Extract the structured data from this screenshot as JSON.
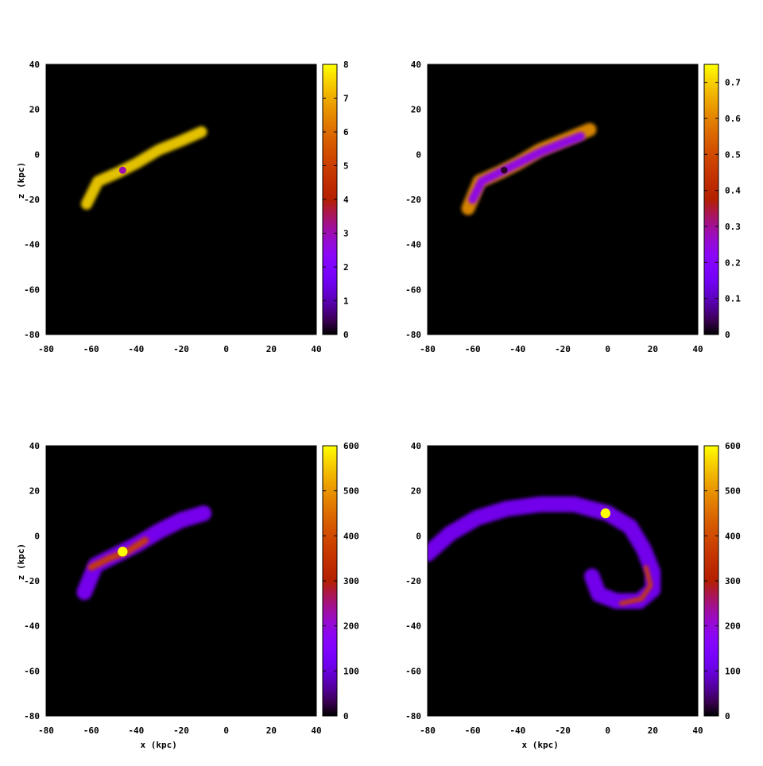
{
  "chart_data": [
    {
      "type": "heatmap",
      "panel": "top-left",
      "xlabel": "",
      "ylabel": "z (kpc)",
      "xlim": [
        -80,
        40
      ],
      "ylim": [
        -80,
        40
      ],
      "x_ticks": [
        "-80",
        "-60",
        "-40",
        "-20",
        "0",
        "20",
        "40"
      ],
      "y_ticks": [
        "-80",
        "-60",
        "-40",
        "-20",
        "0",
        "20",
        "40"
      ],
      "colorbar": {
        "range": [
          0,
          8
        ],
        "ticks": [
          "0",
          "1",
          "2",
          "3",
          "4",
          "5",
          "6",
          "7",
          "8"
        ]
      },
      "features": [
        {
          "kind": "stream",
          "path": [
            [
              -62,
              -22
            ],
            [
              -57,
              -12
            ],
            [
              -48,
              -8
            ],
            [
              -40,
              -4
            ],
            [
              -30,
              2
            ],
            [
              -20,
              6
            ],
            [
              -11,
              10
            ]
          ],
          "width_kpc": 5,
          "level": 7.5
        },
        {
          "kind": "blob",
          "x": -46,
          "z": -7,
          "r_kpc": 1.6,
          "level": 3
        }
      ]
    },
    {
      "type": "heatmap",
      "panel": "top-right",
      "xlabel": "",
      "ylabel": "",
      "xlim": [
        -80,
        40
      ],
      "ylim": [
        -80,
        40
      ],
      "x_ticks": [
        "-80",
        "-60",
        "-40",
        "-20",
        "0",
        "20",
        "40"
      ],
      "y_ticks": [
        "-80",
        "-60",
        "-40",
        "-20",
        "0",
        "20",
        "40"
      ],
      "colorbar": {
        "range": [
          0,
          0.75
        ],
        "ticks": [
          "0",
          "0.1",
          "0.2",
          "0.3",
          "0.4",
          "0.5",
          "0.6",
          "0.7"
        ]
      },
      "features": [
        {
          "kind": "stream",
          "path": [
            [
              -62,
              -24
            ],
            [
              -57,
              -12
            ],
            [
              -48,
              -8
            ],
            [
              -40,
              -4
            ],
            [
              -30,
              2
            ],
            [
              -20,
              6
            ],
            [
              -8,
              11
            ]
          ],
          "width_kpc": 6,
          "level": 0.62
        },
        {
          "kind": "stream",
          "path": [
            [
              -60,
              -20
            ],
            [
              -56,
              -12
            ],
            [
              -48,
              -8
            ],
            [
              -40,
              -4
            ],
            [
              -30,
              1
            ],
            [
              -20,
              5
            ],
            [
              -12,
              8
            ]
          ],
          "width_kpc": 4,
          "level": 0.22
        },
        {
          "kind": "blob",
          "x": -46,
          "z": -7,
          "r_kpc": 1.5,
          "level": 0.02
        }
      ]
    },
    {
      "type": "heatmap",
      "panel": "bottom-left",
      "xlabel": "x (kpc)",
      "ylabel": "z (kpc)",
      "xlim": [
        -80,
        40
      ],
      "ylim": [
        -80,
        40
      ],
      "x_ticks": [
        "-80",
        "-60",
        "-40",
        "-20",
        "0",
        "20",
        "40"
      ],
      "y_ticks": [
        "-80",
        "-60",
        "-40",
        "-20",
        "0",
        "20",
        "40"
      ],
      "colorbar": {
        "range": [
          0,
          600
        ],
        "ticks": [
          "0",
          "100",
          "200",
          "300",
          "400",
          "500",
          "600"
        ]
      },
      "features": [
        {
          "kind": "stream",
          "path": [
            [
              -63,
              -25
            ],
            [
              -58,
              -13
            ],
            [
              -48,
              -8
            ],
            [
              -40,
              -4
            ],
            [
              -30,
              2
            ],
            [
              -20,
              7
            ],
            [
              -10,
              10
            ]
          ],
          "width_kpc": 7,
          "level": 150
        },
        {
          "kind": "stream",
          "path": [
            [
              -60,
              -14
            ],
            [
              -52,
              -10
            ],
            [
              -44,
              -7
            ],
            [
              -36,
              -2
            ]
          ],
          "width_kpc": 3,
          "level": 380
        },
        {
          "kind": "blob",
          "x": -46,
          "z": -7,
          "r_kpc": 2.2,
          "level": 600
        }
      ]
    },
    {
      "type": "heatmap",
      "panel": "bottom-right",
      "xlabel": "x (kpc)",
      "ylabel": "",
      "xlim": [
        -80,
        40
      ],
      "ylim": [
        -80,
        40
      ],
      "x_ticks": [
        "-80",
        "-60",
        "-40",
        "-20",
        "0",
        "20",
        "40"
      ],
      "y_ticks": [
        "-80",
        "-60",
        "-40",
        "-20",
        "0",
        "20",
        "40"
      ],
      "colorbar": {
        "range": [
          0,
          600
        ],
        "ticks": [
          "0",
          "100",
          "200",
          "300",
          "400",
          "500",
          "600"
        ]
      },
      "features": [
        {
          "kind": "stream",
          "path": [
            [
              -80,
              -8
            ],
            [
              -70,
              1
            ],
            [
              -58,
              8
            ],
            [
              -45,
              12
            ],
            [
              -30,
              14
            ],
            [
              -15,
              14
            ],
            [
              0,
              10
            ],
            [
              10,
              4
            ],
            [
              16,
              -6
            ],
            [
              20,
              -16
            ],
            [
              20,
              -24
            ],
            [
              14,
              -29
            ],
            [
              4,
              -29
            ],
            [
              -4,
              -26
            ],
            [
              -7,
              -18
            ]
          ],
          "width_kpc": 7,
          "level": 140
        },
        {
          "kind": "stream",
          "path": [
            [
              17,
              -14
            ],
            [
              19,
              -22
            ],
            [
              15,
              -28
            ],
            [
              6,
              -30
            ]
          ],
          "width_kpc": 2,
          "level": 380
        },
        {
          "kind": "blob",
          "x": -1,
          "z": 10,
          "r_kpc": 2.2,
          "level": 600
        }
      ]
    }
  ]
}
